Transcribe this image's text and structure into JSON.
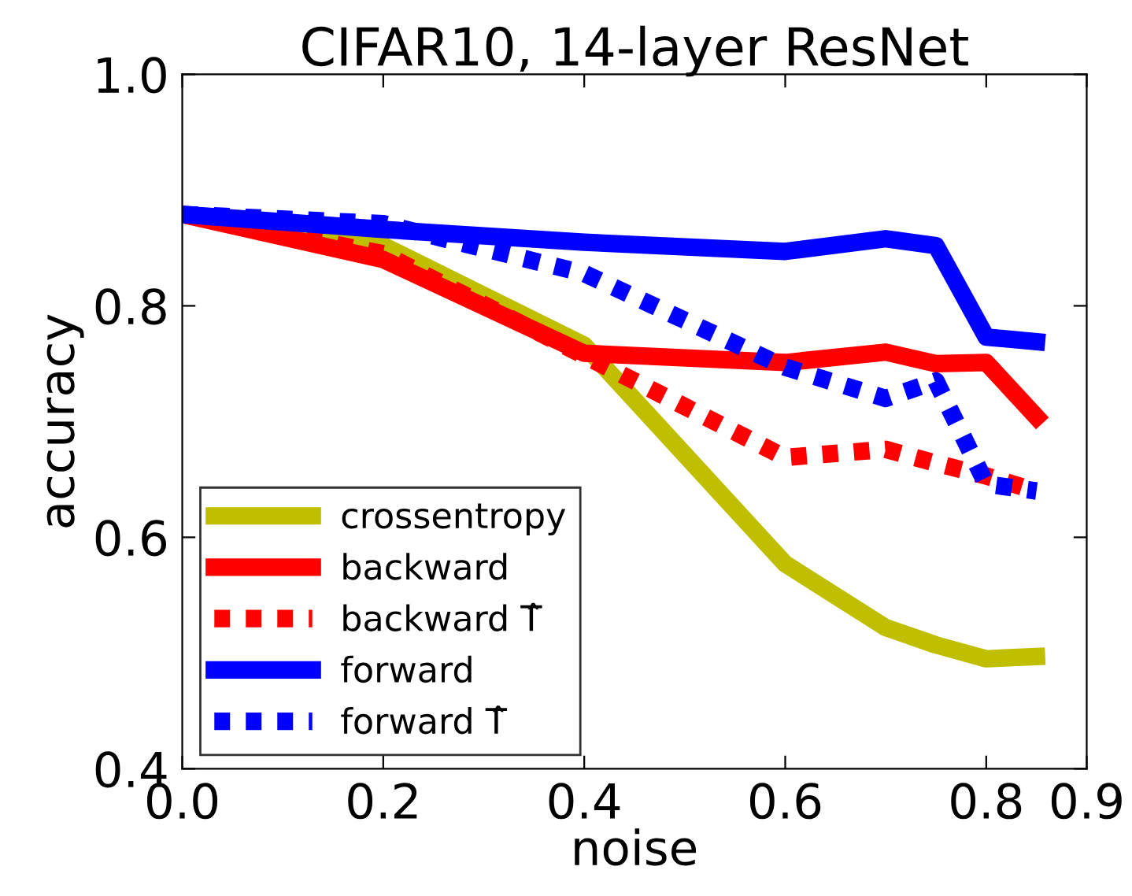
{
  "chart_data": {
    "type": "line",
    "title": "CIFAR10, 14-layer ResNet",
    "xlabel": "noise",
    "ylabel": "accuracy",
    "x": [
      0,
      0.2,
      0.4,
      0.6,
      0.7,
      0.75,
      0.8,
      0.85
    ],
    "series": [
      {
        "name": "crossentropy",
        "color": "#bfbf00",
        "line_style": "solid",
        "values": [
          0.879,
          0.852,
          0.766,
          0.577,
          0.522,
          0.507,
          0.495,
          0.497
        ]
      },
      {
        "name": "backward",
        "color": "#ff0000",
        "line_style": "solid",
        "values": [
          0.879,
          0.84,
          0.759,
          0.751,
          0.76,
          0.75,
          0.751,
          0.704
        ]
      },
      {
        "name": "backward T̂",
        "color": "#ff0000",
        "line_style": "dotted",
        "values": [
          0.879,
          0.845,
          0.757,
          0.669,
          0.676,
          0.664,
          0.653,
          0.64
        ]
      },
      {
        "name": "forward",
        "color": "#0000ff",
        "line_style": "solid",
        "values": [
          0.879,
          0.866,
          0.855,
          0.847,
          0.858,
          0.852,
          0.773,
          0.769
        ]
      },
      {
        "name": "forward T̂",
        "color": "#0000ff",
        "line_style": "dotted",
        "values": [
          0.879,
          0.871,
          0.828,
          0.747,
          0.72,
          0.735,
          0.646,
          0.64
        ]
      }
    ],
    "xlim": [
      0,
      0.9
    ],
    "ylim": [
      0.4,
      1.0
    ],
    "xticks": [
      {
        "value": 0,
        "label": "0.0"
      },
      0.2,
      0.4,
      0.6,
      0.8,
      0.9
    ],
    "yticks": [
      0.4,
      0.6,
      0.8,
      {
        "value": 1,
        "label": "1.0"
      }
    ],
    "grid": false,
    "legend": "bottom left",
    "marker": "none"
  }
}
